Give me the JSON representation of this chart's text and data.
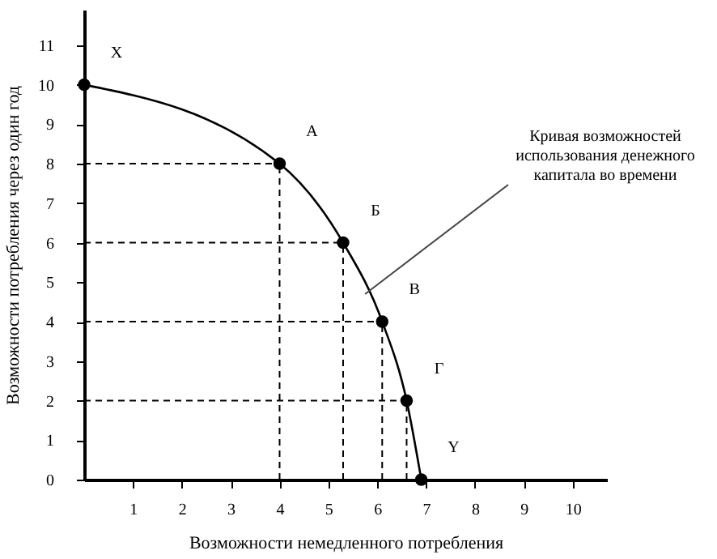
{
  "chart_data": {
    "type": "line",
    "xlabel": "Возможности немедленного потребления",
    "ylabel": "Возможности потребления через один год",
    "series": [
      {
        "color": "#000000",
        "x": [
          0,
          4,
          5.3,
          6.1,
          6.6,
          6.9
        ],
        "values": [
          10,
          8,
          6,
          4,
          2,
          0
        ],
        "errors": [
          null,
          [
            0,
            8
          ],
          [
            0,
            6
          ],
          [
            0,
            4
          ],
          [
            0,
            2
          ],
          null
        ],
        "xerrors": [
          null,
          [
            0,
            4
          ],
          [
            0,
            5.3
          ],
          [
            0,
            6.1
          ],
          [
            0,
            6.6
          ],
          null
        ]
      }
    ],
    "xlim": [
      0,
      10.7
    ],
    "ylim": [
      0,
      11.9
    ],
    "xticks": [
      1,
      2,
      3,
      4,
      5,
      6,
      7,
      8,
      9,
      10
    ],
    "yticks": [
      {
        "value": 0,
        "label": "0"
      },
      1,
      2,
      3,
      4,
      5,
      6,
      7,
      8,
      9,
      10,
      11
    ],
    "marker": "circle",
    "line_style": "solid",
    "grid": false,
    "annotations": [
      {
        "text": "X",
        "x": 0,
        "y": 10
      },
      {
        "text": "A",
        "x": 4,
        "y": 8
      },
      {
        "text": "Б",
        "x": 5.3,
        "y": 6
      },
      {
        "text": "В",
        "x": 6.1,
        "y": 4
      },
      {
        "text": "Г",
        "x": 6.6,
        "y": 2
      },
      {
        "text": "Y",
        "x": 6.9,
        "y": 0
      },
      {
        "text": "Кривая возможностей использования денежного капитала во времени",
        "x": 5.75,
        "y": 4.7
      }
    ]
  }
}
